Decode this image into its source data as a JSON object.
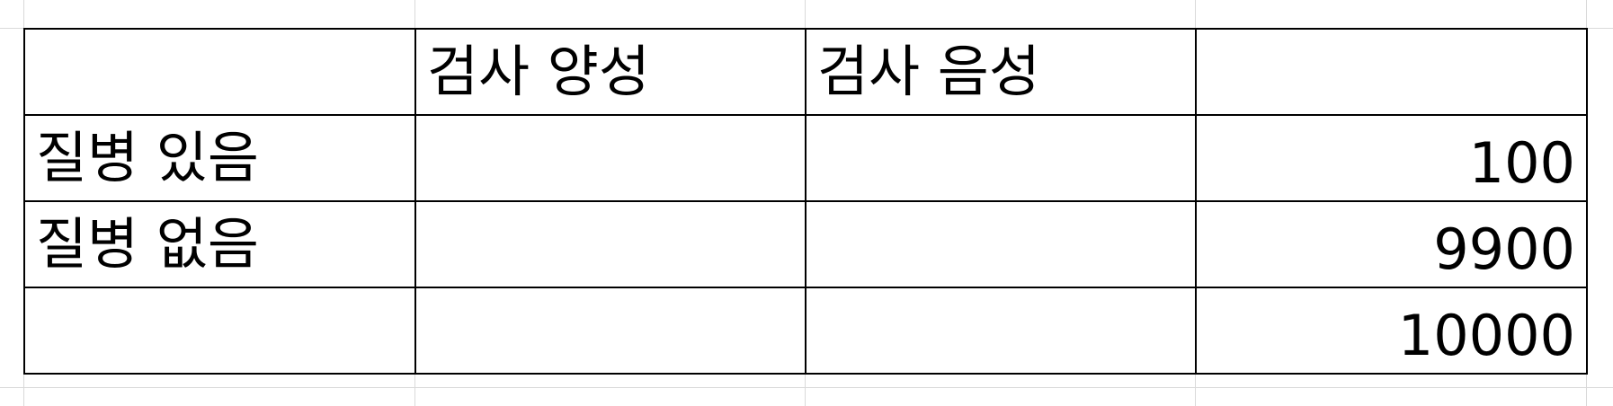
{
  "table": {
    "header": [
      "",
      "검사 양성",
      "검사 음성",
      ""
    ],
    "rows": [
      {
        "label": "질병 있음",
        "positive": "",
        "negative": "",
        "total": "100"
      },
      {
        "label": "질병 없음",
        "positive": "",
        "negative": "",
        "total": "9900"
      },
      {
        "label": "",
        "positive": "",
        "negative": "",
        "total": "10000"
      }
    ]
  },
  "colors": {
    "border": "#000000",
    "gridline": "#d9d9d9",
    "background": "#ffffff"
  }
}
